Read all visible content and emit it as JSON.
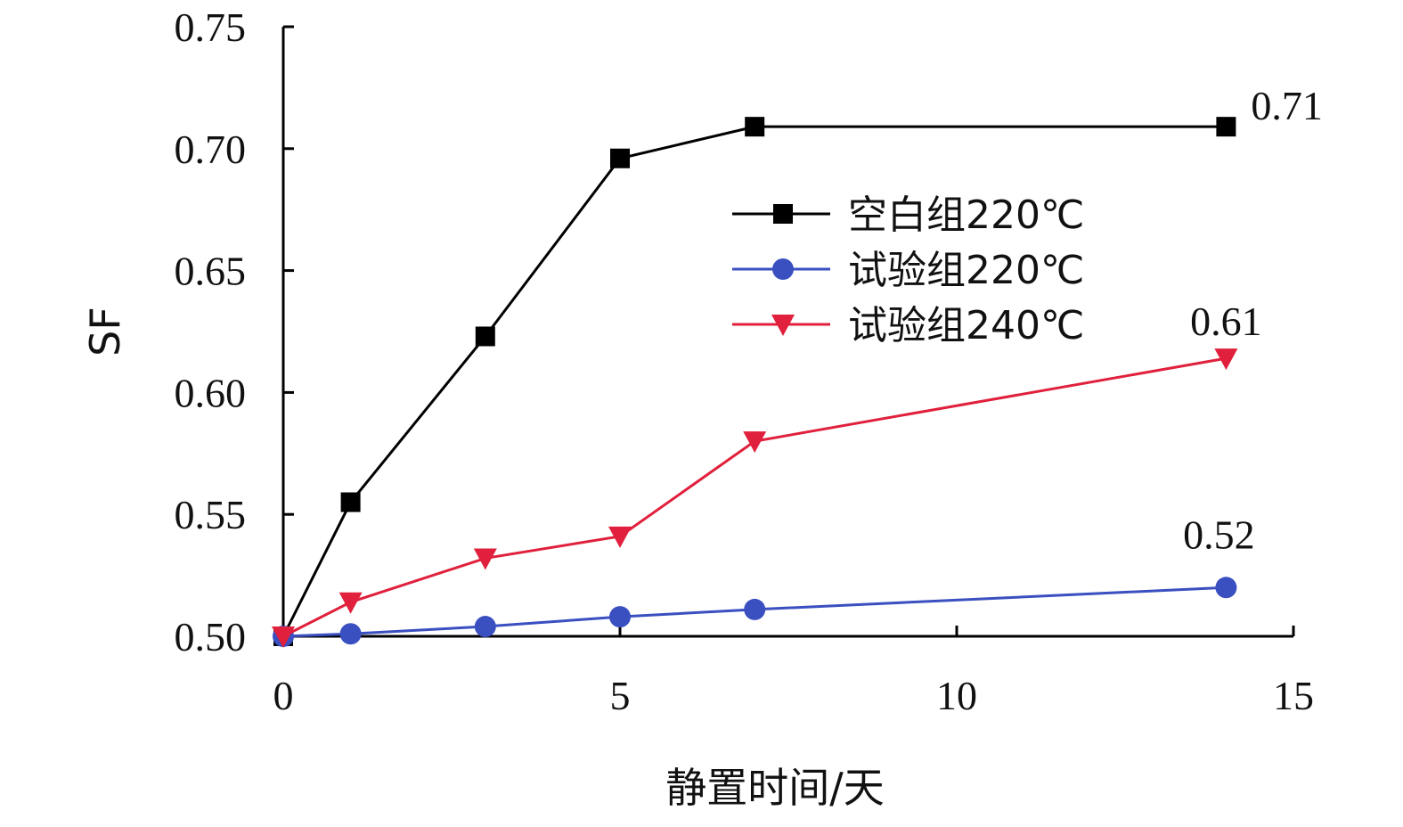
{
  "chart_data": {
    "type": "line",
    "title": "",
    "xlabel": "静置时间/天",
    "ylabel": "SF",
    "xlim": [
      0,
      15
    ],
    "ylim": [
      0.5,
      0.75
    ],
    "xticks": [
      "0",
      "5",
      "10",
      "15"
    ],
    "yticks": [
      "0.50",
      "0.55",
      "0.60",
      "0.65",
      "0.70",
      "0.75"
    ],
    "grid": false,
    "legend_position": "center-right",
    "series": [
      {
        "name": "空白组220℃",
        "color": "#000000",
        "marker": "square",
        "x": [
          0,
          1,
          3,
          5,
          7,
          14
        ],
        "y": [
          0.5,
          0.555,
          0.623,
          0.696,
          0.709,
          0.709
        ],
        "end_label": "0.71"
      },
      {
        "name": "试验组220℃",
        "color": "#3a4fc0",
        "marker": "circle",
        "x": [
          0,
          1,
          3,
          5,
          7,
          14
        ],
        "y": [
          0.5,
          0.501,
          0.504,
          0.508,
          0.511,
          0.52
        ],
        "end_label": "0.52"
      },
      {
        "name": "试验组240℃",
        "color": "#e0203c",
        "marker": "triangle-down",
        "x": [
          0,
          1,
          3,
          5,
          7,
          14
        ],
        "y": [
          0.5,
          0.514,
          0.532,
          0.541,
          0.58,
          0.614
        ],
        "end_label": "0.61"
      }
    ]
  }
}
